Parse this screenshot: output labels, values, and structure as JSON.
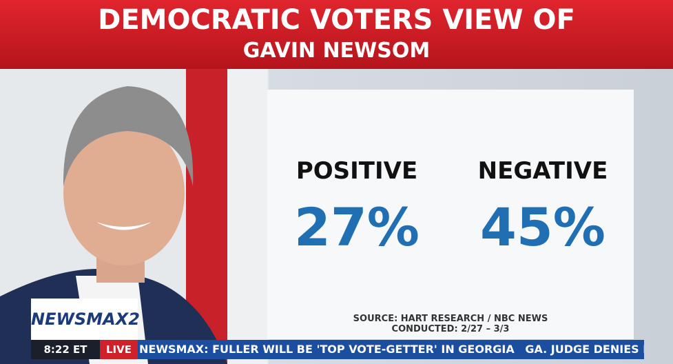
{
  "header": {
    "title": "DEMOCRATIC VOTERS VIEW OF",
    "subtitle": "GAVIN NEWSOM"
  },
  "stats": [
    {
      "label": "POSITIVE",
      "value": "27%"
    },
    {
      "label": "NEGATIVE",
      "value": "45%"
    }
  ],
  "source": {
    "line1": "SOURCE: HART RESEARCH / NBC NEWS",
    "line2": "CONDUCTED: 2/27 – 3/3"
  },
  "bug": {
    "logo": "NEWSMAX2",
    "time": "8:22 ET",
    "live": "LIVE"
  },
  "ticker": [
    "NEWSMAX: FULLER WILL BE 'TOP VOTE-GETTER' IN GEORGIA",
    "GA. JUDGE DENIES LAKEN RIL"
  ]
}
